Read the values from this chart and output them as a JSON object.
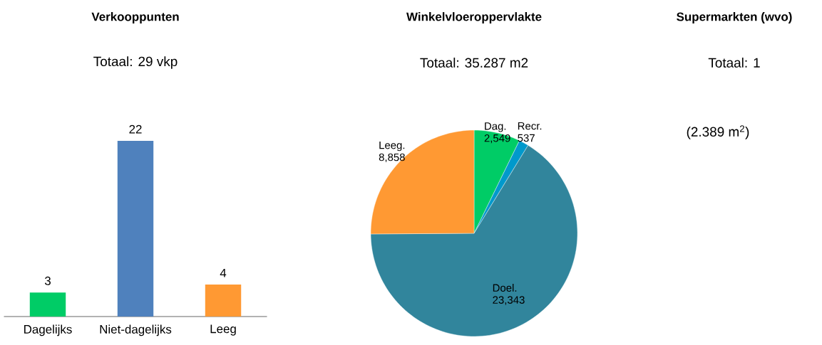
{
  "chart_data": [
    {
      "type": "bar",
      "title": "Verkooppunten",
      "subtitle": "Totaal: 29 vkp",
      "categories": [
        "Dagelijks",
        "Niet-dagelijks",
        "Leeg"
      ],
      "values": [
        3,
        22,
        4
      ],
      "colors": [
        "#00cc66",
        "#4f81bd",
        "#ff9933"
      ],
      "data_labels": true
    },
    {
      "type": "pie",
      "title": "Winkelvloeroppervlakte",
      "subtitle": "Totaal: 35.287 m2",
      "categories": [
        "Dag.",
        "Recr.",
        "Doel.",
        "Leeg."
      ],
      "values": [
        2549,
        537,
        23343,
        8858
      ],
      "value_labels": [
        "2,549",
        "537",
        "23,343",
        "8,858"
      ],
      "colors": [
        "#00cc66",
        "#0099cc",
        "#31859c",
        "#ff9933"
      ]
    },
    {
      "type": "other",
      "title": "Supermarkten (wvo)",
      "subtitle": "Totaal: 1",
      "annotations": [
        "(2.389 m$^{2}$)"
      ]
    }
  ]
}
